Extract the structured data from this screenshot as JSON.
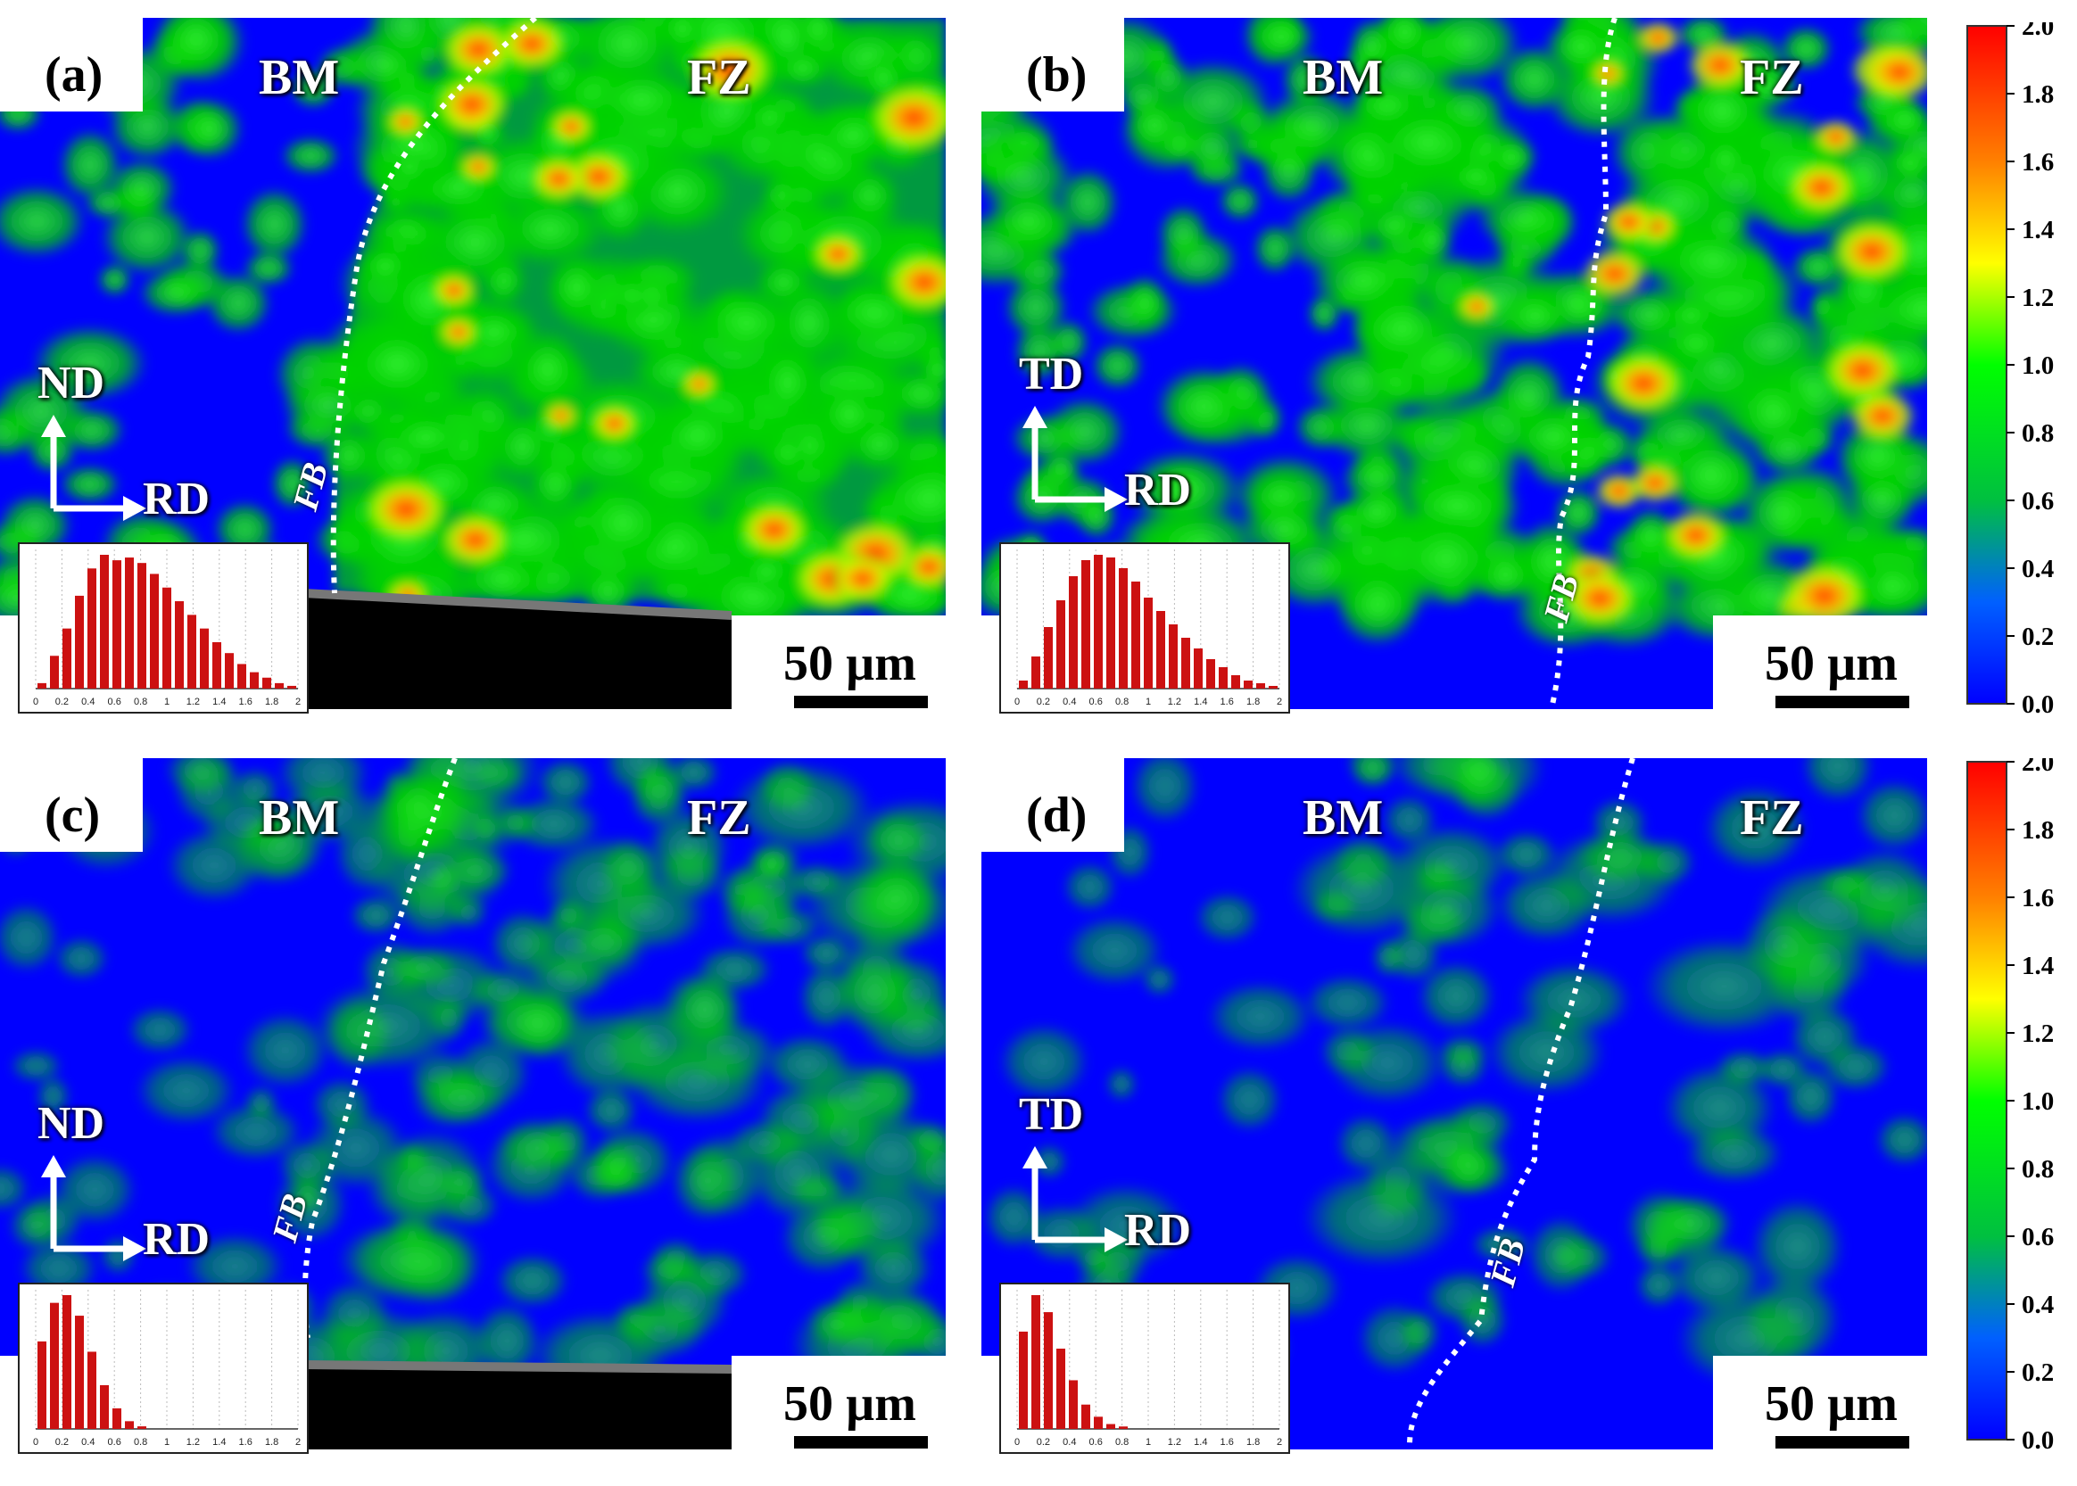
{
  "panels": [
    {
      "letter": "(a)",
      "left": "BM",
      "right": "FZ",
      "axis_v": "ND",
      "axis_h": "RD",
      "fb": "FB",
      "scale": "50 µm",
      "hist": [
        2,
        12,
        22,
        34,
        44,
        49,
        47,
        48,
        46,
        42,
        37,
        32,
        27,
        22,
        17,
        13,
        9,
        6,
        4,
        2,
        1
      ]
    },
    {
      "letter": "(b)",
      "left": "BM",
      "right": "FZ",
      "axis_v": "TD",
      "axis_h": "RD",
      "fb": "FB",
      "scale": "50 µm",
      "hist": [
        3,
        12,
        23,
        33,
        42,
        48,
        50,
        49,
        45,
        40,
        34,
        29,
        24,
        19,
        15,
        11,
        8,
        5,
        3,
        2,
        1
      ]
    },
    {
      "letter": "(c)",
      "left": "BM",
      "right": "FZ",
      "axis_v": "ND",
      "axis_h": "RD",
      "fb": "FB",
      "scale": "50 µm",
      "hist": [
        34,
        49,
        52,
        44,
        30,
        17,
        8,
        3,
        1,
        0,
        0,
        0,
        0,
        0,
        0,
        0,
        0,
        0,
        0,
        0,
        0
      ]
    },
    {
      "letter": "(d)",
      "left": "BM",
      "right": "FZ",
      "axis_v": "TD",
      "axis_h": "RD",
      "fb": "FB",
      "scale": "50 µm",
      "hist": [
        40,
        55,
        48,
        33,
        20,
        10,
        5,
        2,
        1,
        0,
        0,
        0,
        0,
        0,
        0,
        0,
        0,
        0,
        0,
        0,
        0
      ]
    }
  ],
  "hist_ticks": [
    "0",
    "0.2",
    "0.4",
    "0.6",
    "0.8",
    "1",
    "1.2",
    "1.4",
    "1.6",
    "1.8",
    "2"
  ],
  "colorbar_ticks": [
    "2.0",
    "1.8",
    "1.6",
    "1.4",
    "1.2",
    "1.0",
    "0.8",
    "0.6",
    "0.4",
    "0.2",
    "0.0"
  ],
  "colors": {
    "blue": "#0000ff",
    "green": "#00e000",
    "red": "#ff1a00",
    "hist_bar": "#cc1111"
  }
}
